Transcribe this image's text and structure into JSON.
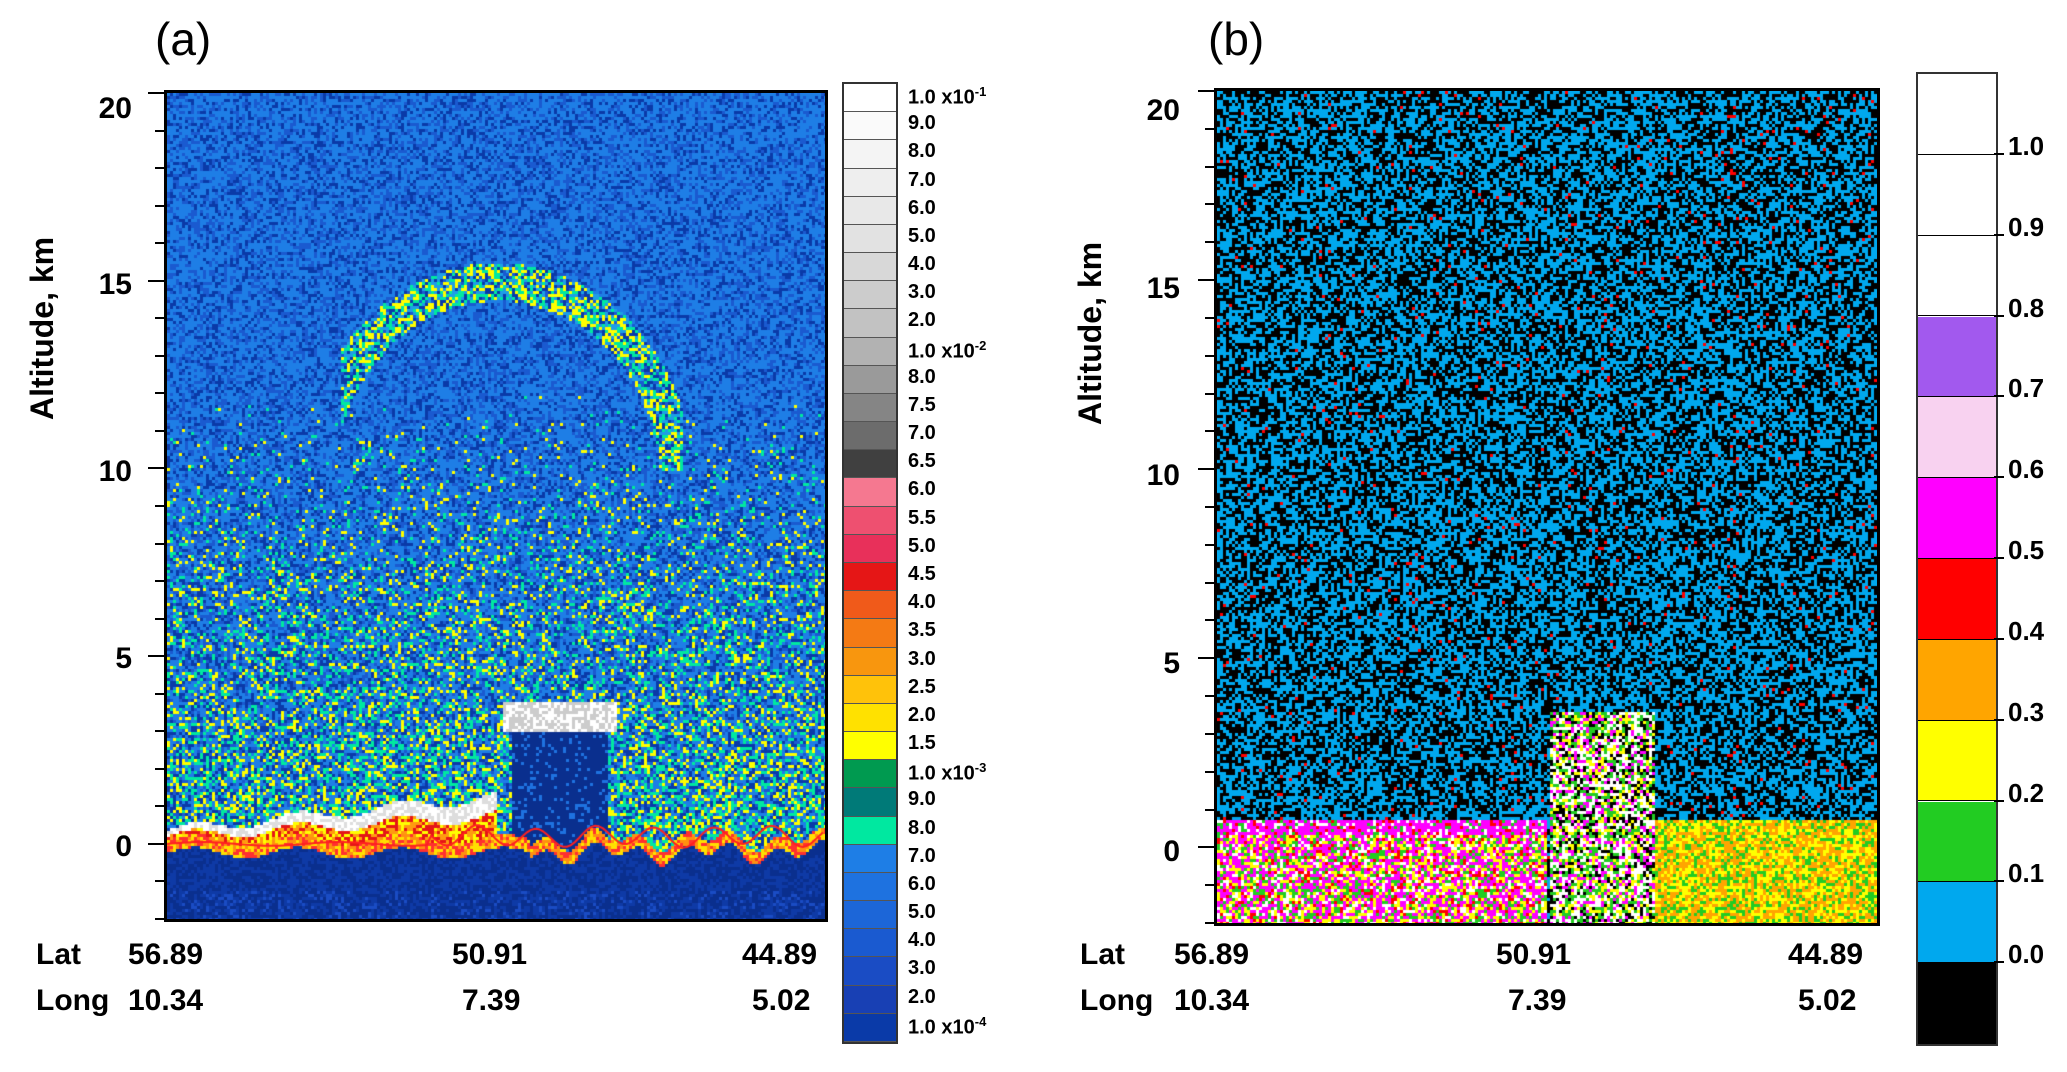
{
  "panels": {
    "a": {
      "label": "(a)"
    },
    "b": {
      "label": "(b)"
    }
  },
  "chart_data": [
    {
      "type": "heatmap",
      "panel": "(a)",
      "ylabel": "Altitude, km",
      "yticks": [
        "20",
        "15",
        "10",
        "5",
        "0"
      ],
      "ylim": [
        -2,
        20
      ],
      "x_row1_label": "Lat",
      "x_row2_label": "Long",
      "x_ticks_lat": [
        "56.89",
        "50.91",
        "44.89"
      ],
      "x_ticks_long": [
        "10.34",
        "7.39",
        "5.02"
      ],
      "features": [
        {
          "name": "surface aerosol layer",
          "altitude_km": [
            0,
            1.3
          ]
        },
        {
          "name": "cloud top",
          "altitude_km": [
            3.0,
            3.8
          ]
        },
        {
          "name": "cirrus",
          "altitude_km": [
            9.5,
            15.5
          ]
        }
      ],
      "colorbar": {
        "labels": [
          {
            "mant": "1.0",
            "exp": "-1"
          },
          {
            "mant": "9.0"
          },
          {
            "mant": "8.0"
          },
          {
            "mant": "7.0"
          },
          {
            "mant": "6.0"
          },
          {
            "mant": "5.0"
          },
          {
            "mant": "4.0"
          },
          {
            "mant": "3.0"
          },
          {
            "mant": "2.0"
          },
          {
            "mant": "1.0",
            "exp": "-2"
          },
          {
            "mant": "8.0"
          },
          {
            "mant": "7.5"
          },
          {
            "mant": "7.0"
          },
          {
            "mant": "6.5"
          },
          {
            "mant": "6.0"
          },
          {
            "mant": "5.5"
          },
          {
            "mant": "5.0"
          },
          {
            "mant": "4.5"
          },
          {
            "mant": "4.0"
          },
          {
            "mant": "3.5"
          },
          {
            "mant": "3.0"
          },
          {
            "mant": "2.5"
          },
          {
            "mant": "2.0"
          },
          {
            "mant": "1.5"
          },
          {
            "mant": "1.0",
            "exp": "-3"
          },
          {
            "mant": "9.0"
          },
          {
            "mant": "8.0"
          },
          {
            "mant": "7.0"
          },
          {
            "mant": "6.0"
          },
          {
            "mant": "5.0"
          },
          {
            "mant": "4.0"
          },
          {
            "mant": "3.0"
          },
          {
            "mant": "2.0"
          },
          {
            "mant": "1.0",
            "exp": "-4"
          }
        ],
        "colors": [
          "#ffffff",
          "#fafafa",
          "#f4f4f4",
          "#eeeeee",
          "#e8e8e8",
          "#e2e2e2",
          "#d8d8d8",
          "#cccccc",
          "#c2c2c2",
          "#b2b2b2",
          "#9a9a9a",
          "#858585",
          "#6c6c6c",
          "#404040",
          "#f57890",
          "#ee5070",
          "#e8305a",
          "#e51616",
          "#f05a1a",
          "#f47a14",
          "#f8960e",
          "#ffc20a",
          "#ffe100",
          "#ffff00",
          "#009a50",
          "#007a78",
          "#00e8a0",
          "#1e7ee6",
          "#1e72e0",
          "#1c66d8",
          "#1a5ad0",
          "#1a4cc4",
          "#1840b4",
          "#0a3aa8"
        ]
      }
    },
    {
      "type": "heatmap",
      "panel": "(b)",
      "ylabel": "Altitude, km",
      "yticks": [
        "20",
        "15",
        "10",
        "5",
        "0"
      ],
      "ylim": [
        -2,
        20
      ],
      "x_row1_label": "Lat",
      "x_row2_label": "Long",
      "x_ticks_lat": [
        "56.89",
        "50.91",
        "44.89"
      ],
      "x_ticks_long": [
        "10.34",
        "7.39",
        "5.02"
      ],
      "colorbar": {
        "labels": [
          "1.0",
          "0.9",
          "0.8",
          "0.7",
          "0.6",
          "0.5",
          "0.4",
          "0.3",
          "0.2",
          "0.1",
          "0.0"
        ],
        "colors": [
          "#ffffff",
          "#ffffff",
          "#ffffff",
          "#a259ee",
          "#f8d2f0",
          "#ff00ff",
          "#ff0000",
          "#ffa500",
          "#ffff00",
          "#22cc22",
          "#00a8ee",
          "#000000"
        ]
      }
    }
  ]
}
